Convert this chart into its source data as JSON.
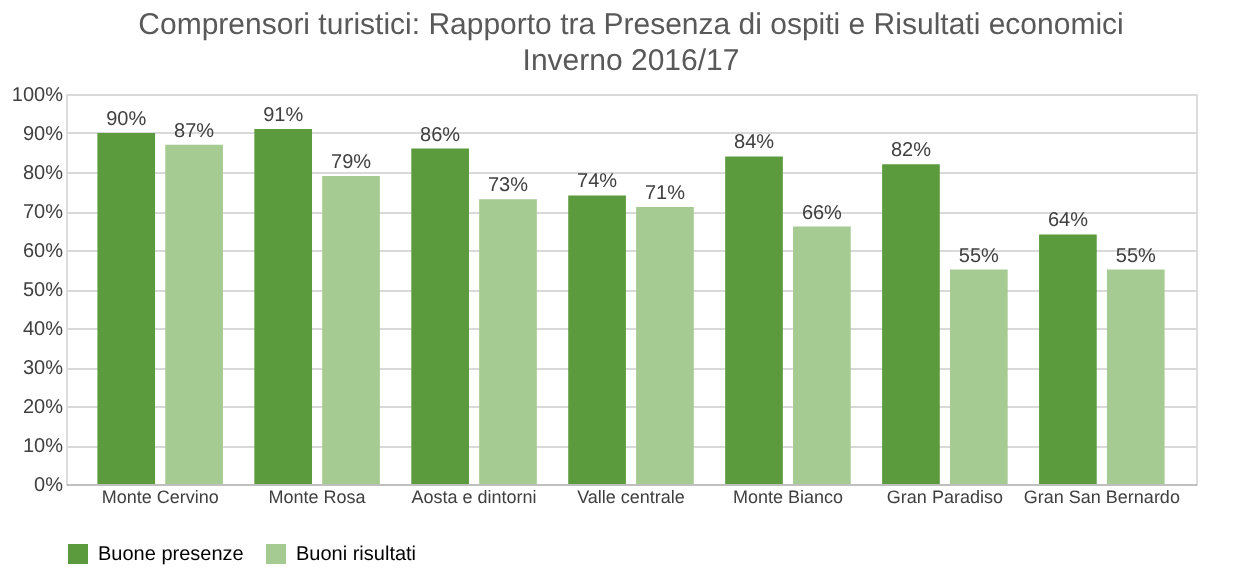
{
  "chart_data": {
    "type": "bar",
    "title": "Comprensori turistici: Rapporto tra Presenza di ospiti e Risultati economici",
    "subtitle": "Inverno 2016/17",
    "categories": [
      "Monte Cervino",
      "Monte Rosa",
      "Aosta e dintorni",
      "Valle centrale",
      "Monte Bianco",
      "Gran Paradiso",
      "Gran San Bernardo"
    ],
    "series": [
      {
        "name": "Buone presenze",
        "color": "#5b9b3e",
        "values": [
          90,
          91,
          86,
          74,
          84,
          82,
          64
        ],
        "value_labels": [
          "90%",
          "91%",
          "86%",
          "74%",
          "84%",
          "82%",
          "64%"
        ]
      },
      {
        "name": "Buoni risultati",
        "color": "#a5cb92",
        "values": [
          87,
          79,
          73,
          71,
          66,
          55,
          55
        ],
        "value_labels": [
          "87%",
          "79%",
          "73%",
          "71%",
          "66%",
          "55%",
          "55%"
        ]
      }
    ],
    "ylim": [
      0,
      100
    ],
    "yticks": [
      {
        "value": 0,
        "label": "0%"
      },
      {
        "value": 10,
        "label": "10%"
      },
      {
        "value": 20,
        "label": "20%"
      },
      {
        "value": 30,
        "label": "30%"
      },
      {
        "value": 40,
        "label": "40%"
      },
      {
        "value": 50,
        "label": "50%"
      },
      {
        "value": 60,
        "label": "60%"
      },
      {
        "value": 70,
        "label": "70%"
      },
      {
        "value": 80,
        "label": "80%"
      },
      {
        "value": 90,
        "label": "90%"
      },
      {
        "value": 100,
        "label": "100%"
      }
    ],
    "grid": "y",
    "legend": "bottom"
  }
}
